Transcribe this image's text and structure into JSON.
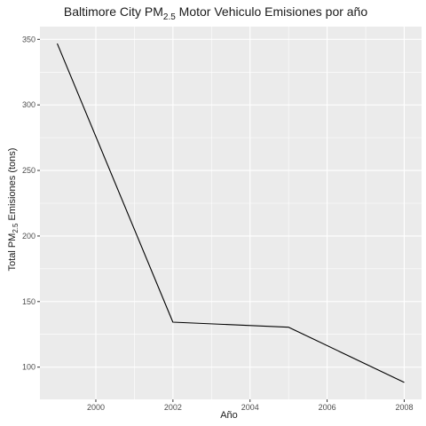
{
  "chart_data": {
    "type": "line",
    "title_main": "Baltimore City PM",
    "title_sub": "2.5",
    "title_rest": " Motor Vehiculo Emisiones por año",
    "xlabel": "Año",
    "ylabel_main": "Total PM",
    "ylabel_sub": "2.5",
    "ylabel_rest": " Emisiones (tons)",
    "x": [
      1999,
      2002,
      2005,
      2008
    ],
    "y": [
      346.8,
      134.3,
      130.4,
      88.3
    ],
    "xlim": [
      1998.55,
      2008.45
    ],
    "ylim": [
      75.4,
      359.7
    ],
    "xticks": [
      2000,
      2002,
      2004,
      2006,
      2008
    ],
    "xtick_labels": [
      "2000",
      "2002",
      "2004",
      "2006",
      "2008"
    ],
    "yticks": [
      100,
      150,
      200,
      250,
      300,
      350
    ],
    "ytick_labels": [
      "100",
      "150",
      "200",
      "250",
      "300",
      "350"
    ],
    "grid": true,
    "colors": {
      "panel": "#ebebeb",
      "grid_major": "#ffffff",
      "line": "#000000"
    }
  }
}
